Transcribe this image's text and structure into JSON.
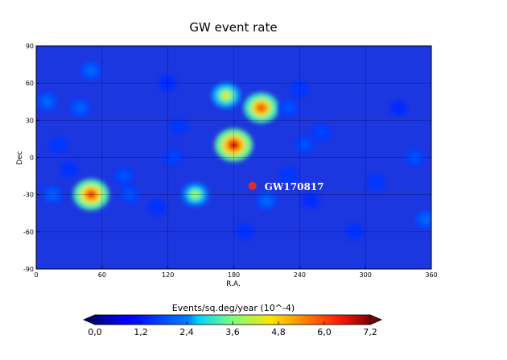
{
  "chart_data": {
    "type": "heatmap",
    "title": "GW event rate",
    "xlabel": "R.A.",
    "ylabel": "Dec",
    "xlim": [
      0,
      360
    ],
    "ylim": [
      -90,
      90
    ],
    "xticks": [
      "0",
      "60",
      "120",
      "180",
      "240",
      "300",
      "360"
    ],
    "yticks": [
      "90",
      "60",
      "30",
      "0",
      "-30",
      "-60",
      "-90"
    ],
    "xtick_values": [
      0,
      60,
      120,
      180,
      240,
      300,
      360
    ],
    "ytick_values": [
      90,
      60,
      30,
      0,
      -30,
      -60,
      -90
    ],
    "grid": true,
    "colormap": "jet",
    "colorbar": {
      "label": "Events/sq.deg/year (10^-4)",
      "range": [
        0,
        7.2
      ],
      "ticks": [
        "0,0",
        "1,2",
        "2,4",
        "3,6",
        "4,8",
        "6,0",
        "7,2"
      ],
      "tick_values": [
        0,
        1.2,
        2.4,
        3.6,
        4.8,
        6.0,
        7.2
      ],
      "placement": "bottom",
      "extend": "both"
    },
    "hotspots": [
      {
        "ra": 180,
        "dec": 10,
        "value": 7.0
      },
      {
        "ra": 50,
        "dec": -30,
        "value": 6.5
      },
      {
        "ra": 205,
        "dec": 40,
        "value": 6.2
      },
      {
        "ra": 173,
        "dec": 50,
        "value": 4.5
      },
      {
        "ra": 145,
        "dec": -30,
        "value": 4.0
      },
      {
        "ra": 50,
        "dec": 70,
        "value": 2.3
      },
      {
        "ra": 10,
        "dec": 45,
        "value": 2.3
      },
      {
        "ra": 40,
        "dec": 40,
        "value": 2.2
      },
      {
        "ra": 15,
        "dec": -30,
        "value": 2.2
      },
      {
        "ra": 85,
        "dec": -30,
        "value": 2.0
      },
      {
        "ra": 80,
        "dec": -15,
        "value": 2.0
      },
      {
        "ra": 125,
        "dec": 0,
        "value": 1.8
      },
      {
        "ra": 210,
        "dec": -35,
        "value": 2.3
      },
      {
        "ra": 230,
        "dec": 40,
        "value": 2.0
      },
      {
        "ra": 245,
        "dec": 10,
        "value": 2.0
      },
      {
        "ra": 260,
        "dec": 20,
        "value": 1.8
      },
      {
        "ra": 310,
        "dec": -20,
        "value": 1.6
      },
      {
        "ra": 345,
        "dec": 0,
        "value": 2.0
      },
      {
        "ra": 355,
        "dec": -50,
        "value": 2.3
      },
      {
        "ra": 290,
        "dec": -60,
        "value": 1.5
      },
      {
        "ra": 240,
        "dec": 55,
        "value": 1.6
      },
      {
        "ra": 230,
        "dec": -15,
        "value": 1.6
      },
      {
        "ra": 120,
        "dec": 60,
        "value": 1.4
      },
      {
        "ra": 110,
        "dec": -40,
        "value": 1.5
      },
      {
        "ra": 20,
        "dec": 10,
        "value": 1.6
      },
      {
        "ra": 30,
        "dec": -10,
        "value": 1.5
      },
      {
        "ra": 250,
        "dec": -35,
        "value": 1.4
      },
      {
        "ra": 330,
        "dec": 40,
        "value": 1.3
      },
      {
        "ra": 190,
        "dec": -60,
        "value": 1.5
      },
      {
        "ra": 130,
        "dec": 25,
        "value": 1.6
      }
    ],
    "annotations": [
      {
        "label": "GW170817",
        "ra": 197,
        "dec": -23,
        "marker_color": "#e32c28"
      }
    ]
  }
}
